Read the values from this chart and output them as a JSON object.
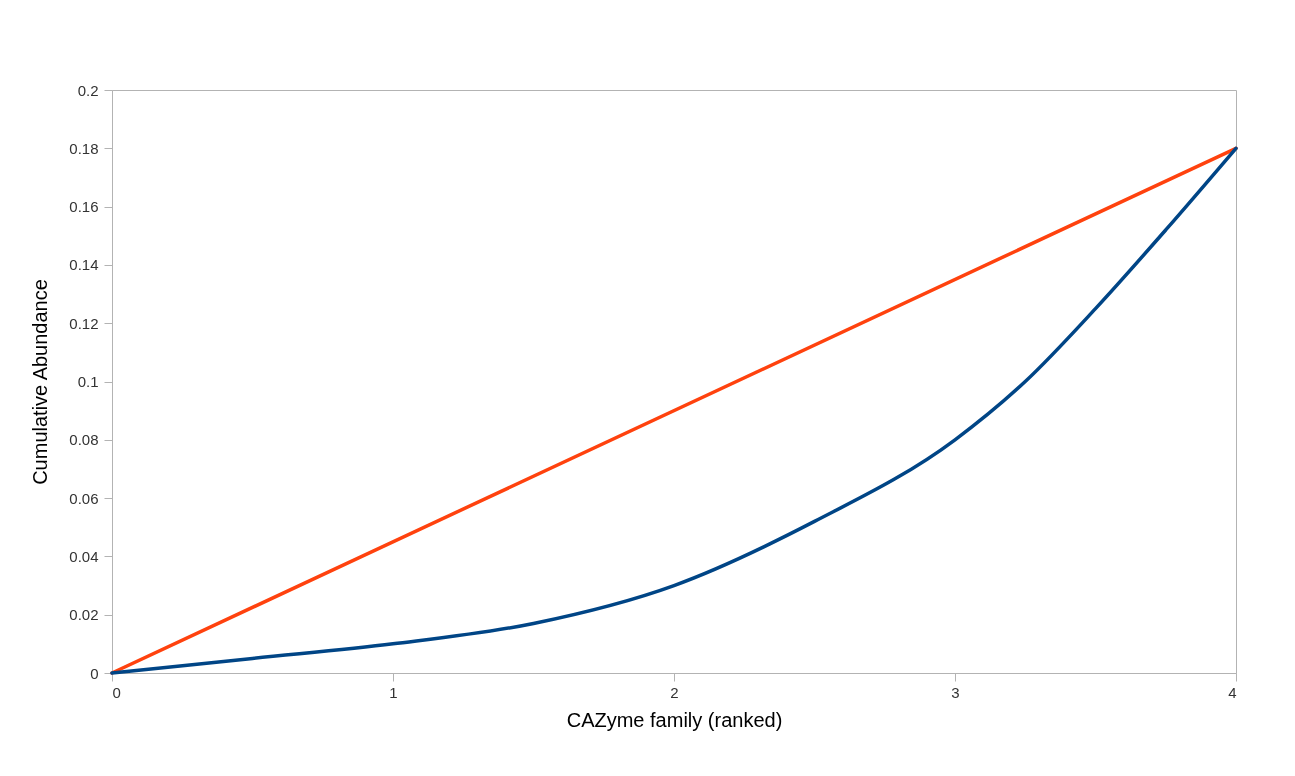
{
  "chart_data": {
    "type": "line",
    "xlabel": "CAZyme family (ranked)",
    "ylabel": "Cumulative Abundance",
    "xlim": [
      0,
      4
    ],
    "xticks": [
      0,
      1,
      2,
      3,
      4
    ],
    "ylim": [
      0,
      0.2
    ],
    "yticks": [
      0,
      0.02,
      0.04,
      0.06,
      0.08,
      0.1,
      0.12,
      0.14,
      0.16,
      0.18,
      0.2
    ],
    "grid": false,
    "marker": "none",
    "line_style": "solid",
    "series": [
      {
        "color": "#ff420e",
        "x": [
          0,
          4
        ],
        "values": [
          0,
          0.18
        ]
      },
      {
        "color": "#004586",
        "x": [
          0,
          0.5,
          1,
          1.5,
          2,
          2.5,
          3,
          3.25,
          3.5,
          3.75,
          4
        ],
        "values": [
          0,
          0.005,
          0.01,
          0.017,
          0.03,
          0.052,
          0.08,
          0.1,
          0.125,
          0.152,
          0.18
        ]
      }
    ]
  }
}
